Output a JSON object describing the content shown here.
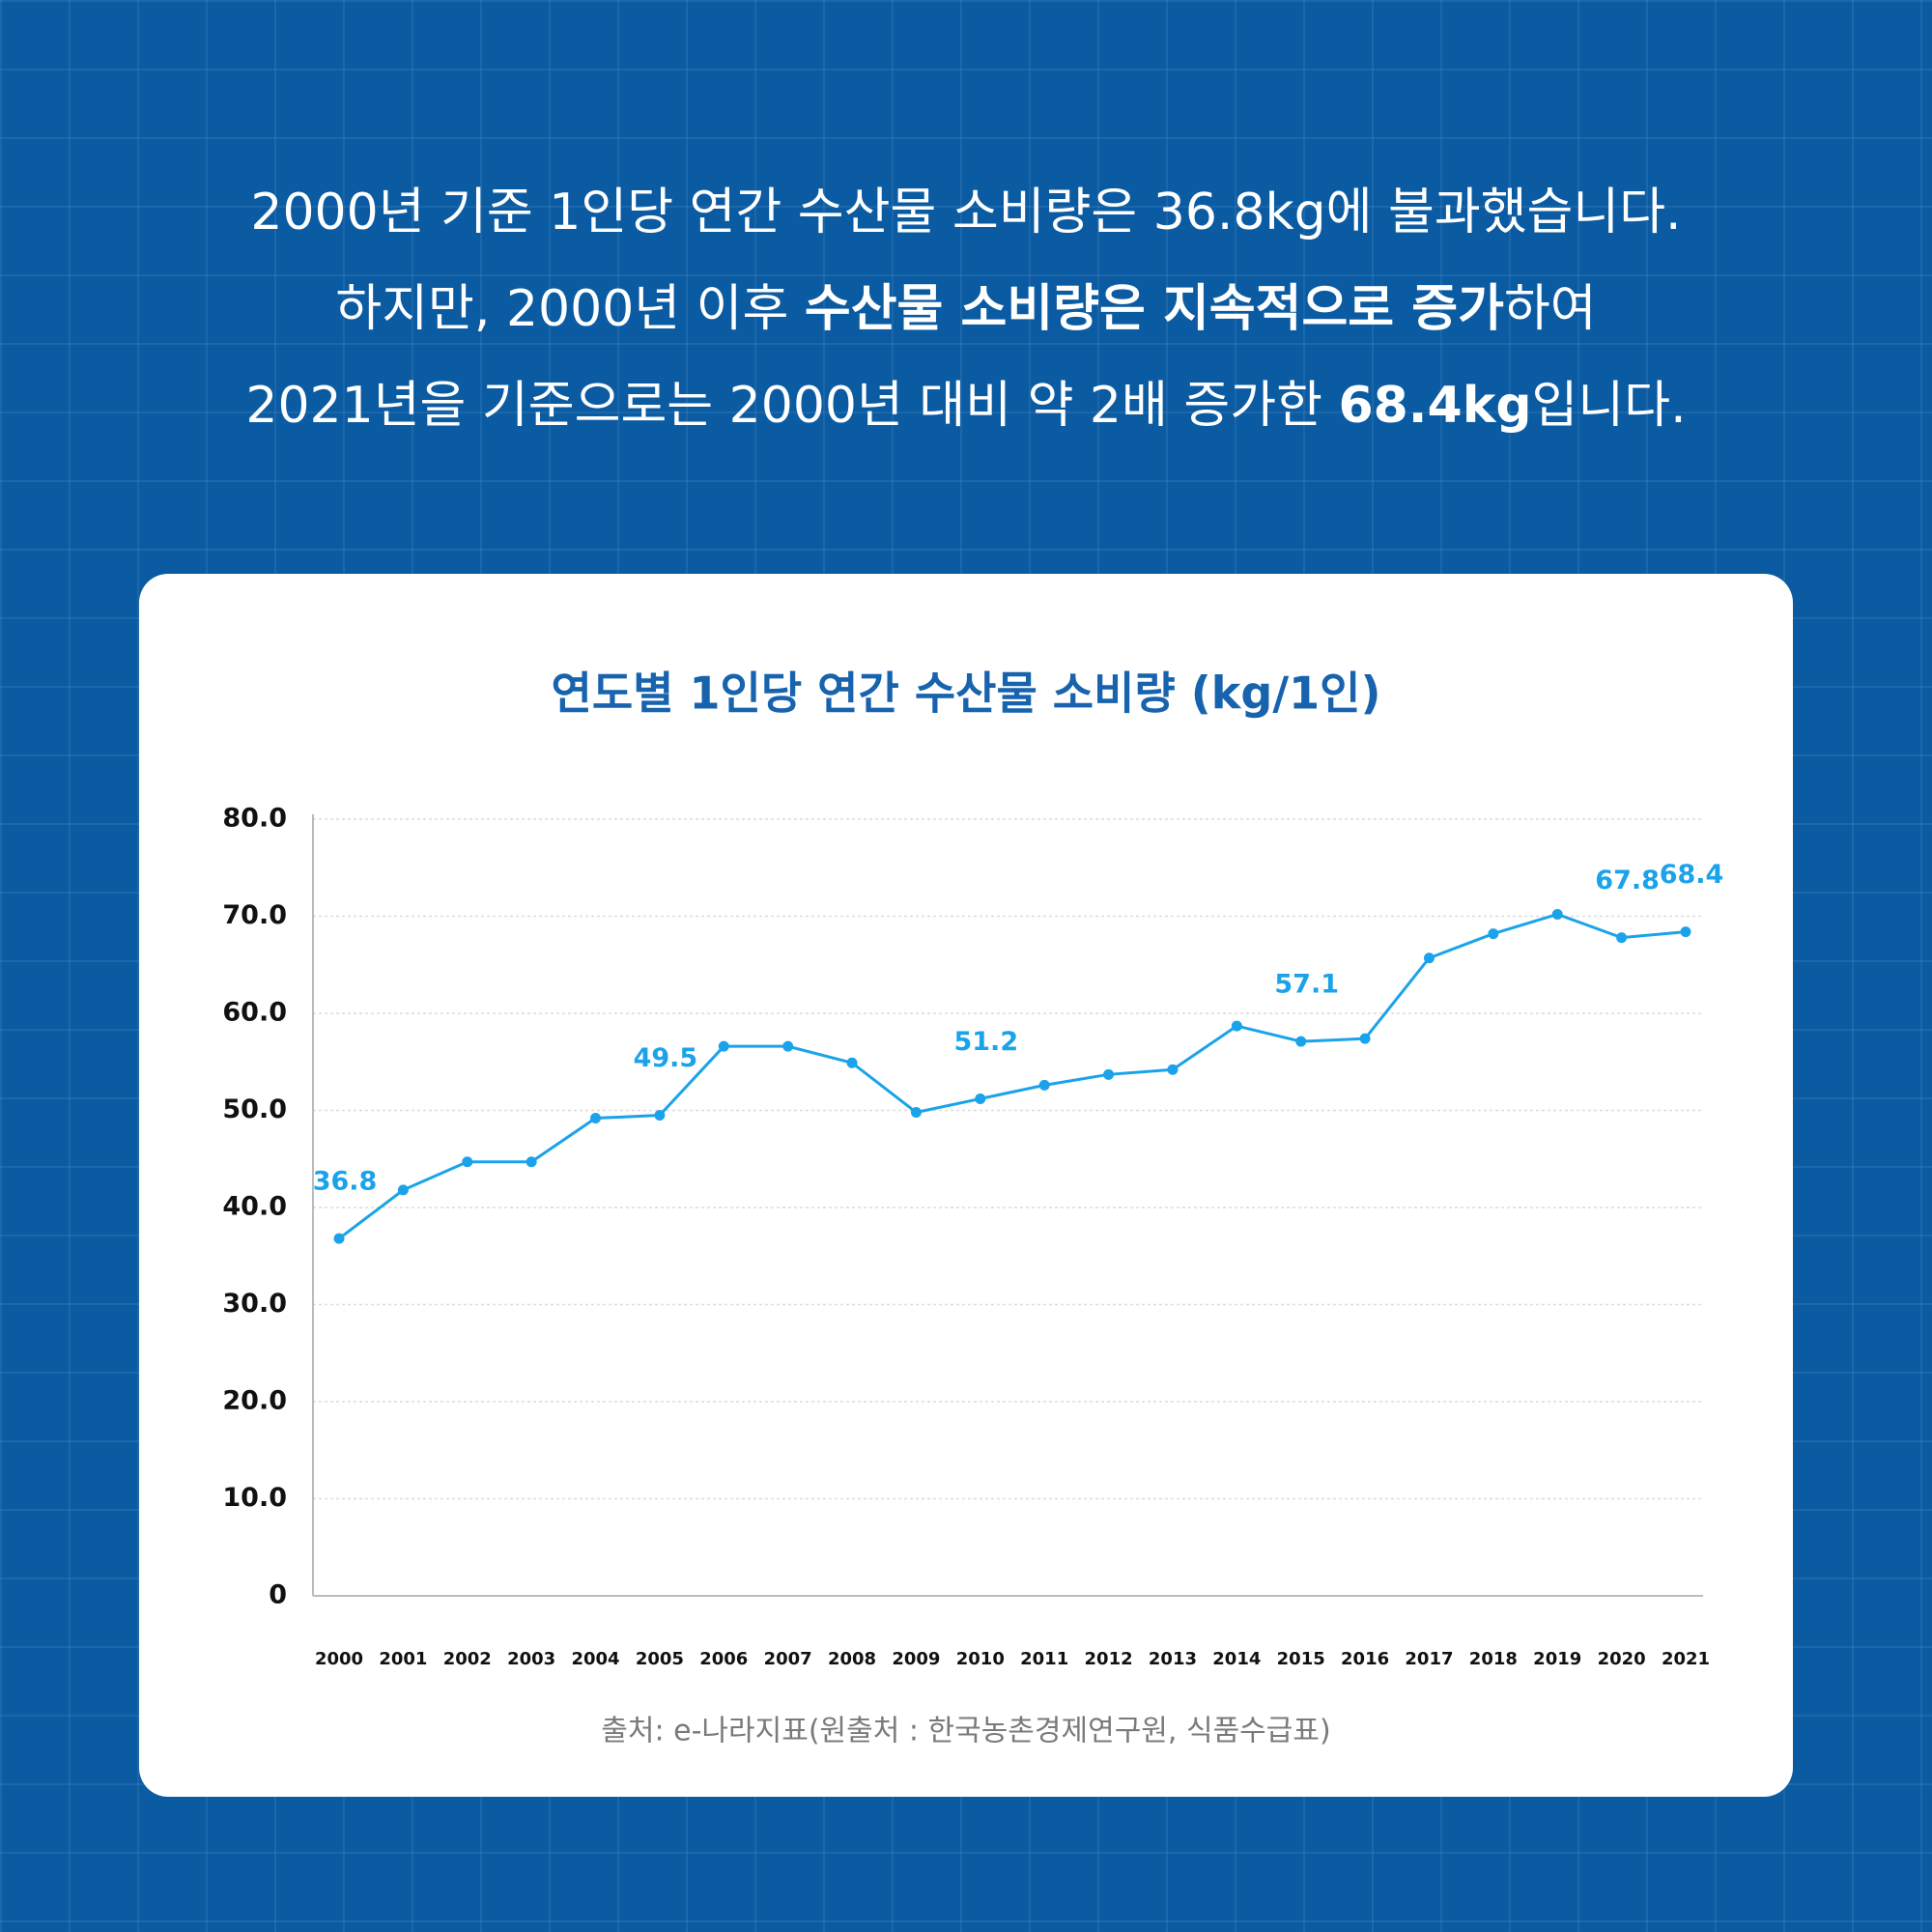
{
  "header": {
    "lines": [
      [
        {
          "text": "2000년 기준 1인당 연간 수산물 소비량은 36.8kg에 불과했습니다.",
          "bold": false
        }
      ],
      [
        {
          "text": "하지만, 2000년 이후 ",
          "bold": false
        },
        {
          "text": "수산물 소비량은 지속적으로 증가",
          "bold": true
        },
        {
          "text": "하여",
          "bold": false
        }
      ],
      [
        {
          "text": "2021년을 기준으로는 2000년 대비 약 2배 증가한 ",
          "bold": false
        },
        {
          "text": "68.4kg",
          "bold": true
        },
        {
          "text": "입니다.",
          "bold": false
        }
      ]
    ]
  },
  "chart_data": {
    "type": "line",
    "title": "연도별 1인당 연간 수산물 소비량 (kg/1인)",
    "categories": [
      "2000",
      "2001",
      "2002",
      "2003",
      "2004",
      "2005",
      "2006",
      "2007",
      "2008",
      "2009",
      "2010",
      "2011",
      "2012",
      "2013",
      "2014",
      "2015",
      "2016",
      "2017",
      "2018",
      "2019",
      "2020",
      "2021"
    ],
    "values": [
      36.8,
      41.8,
      44.7,
      44.7,
      49.2,
      49.5,
      56.6,
      56.6,
      54.9,
      49.8,
      51.2,
      52.6,
      53.7,
      54.2,
      58.7,
      57.1,
      57.4,
      65.7,
      68.2,
      70.2,
      67.8,
      68.4
    ],
    "labeled_points": [
      0,
      5,
      10,
      15,
      20,
      21
    ],
    "color": "#1aa3ea",
    "ylim": [
      0,
      80
    ],
    "yticks": [
      0,
      {
        "value": 10,
        "label": "10.0"
      },
      {
        "value": 20,
        "label": "20.0"
      },
      {
        "value": 30,
        "label": "30.0"
      },
      {
        "value": 40,
        "label": "40.0"
      },
      {
        "value": 50,
        "label": "50.0"
      },
      {
        "value": 60,
        "label": "60.0"
      },
      {
        "value": 70,
        "label": "70.0"
      },
      {
        "value": 80,
        "label": "80.0"
      }
    ],
    "grid": true,
    "source": "출처: e-나라지표(원출처 : 한국농촌경제연구원, 식품수급표)"
  }
}
